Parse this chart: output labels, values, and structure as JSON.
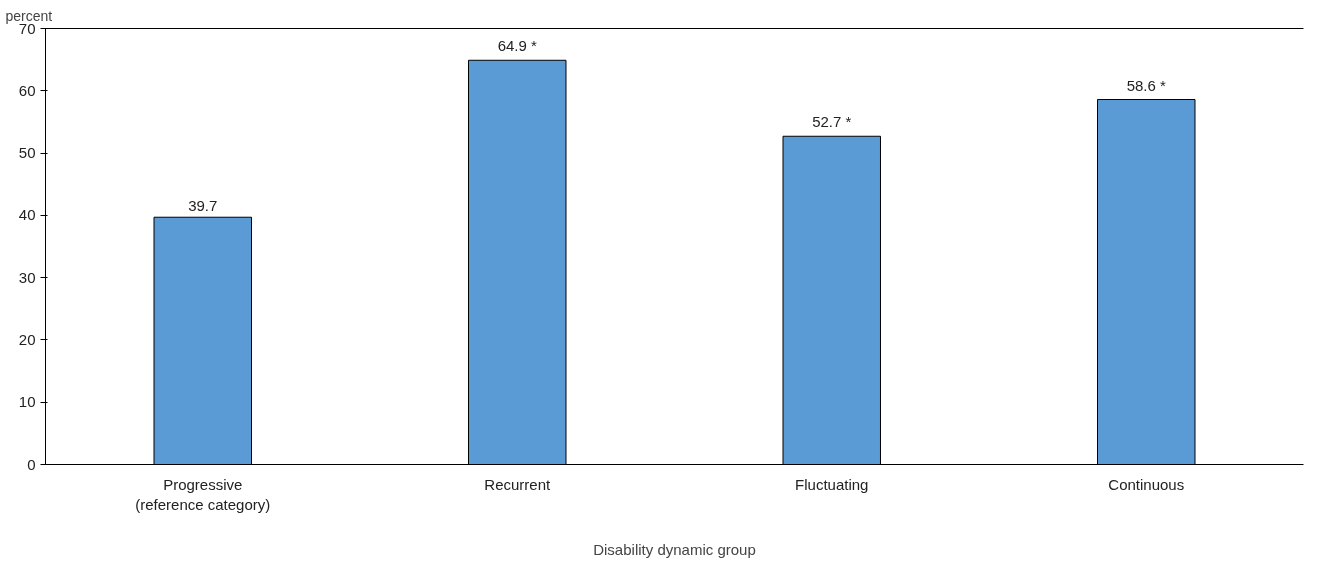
{
  "chart_data": {
    "type": "bar",
    "ylabel": "percent",
    "xlabel": "Disability dynamic group",
    "categories": [
      "Progressive\n(reference category)",
      "Recurrent",
      "Fluctuating",
      "Continuous"
    ],
    "values": [
      39.7,
      64.9,
      52.7,
      58.6
    ],
    "value_labels": [
      "39.7",
      "64.9 *",
      "52.7 *",
      "58.6 *"
    ],
    "color": "#5b9bd5",
    "ylim": [
      0,
      70
    ],
    "yticks": [
      0,
      10,
      20,
      30,
      40,
      50,
      60,
      70
    ],
    "grid": false
  }
}
